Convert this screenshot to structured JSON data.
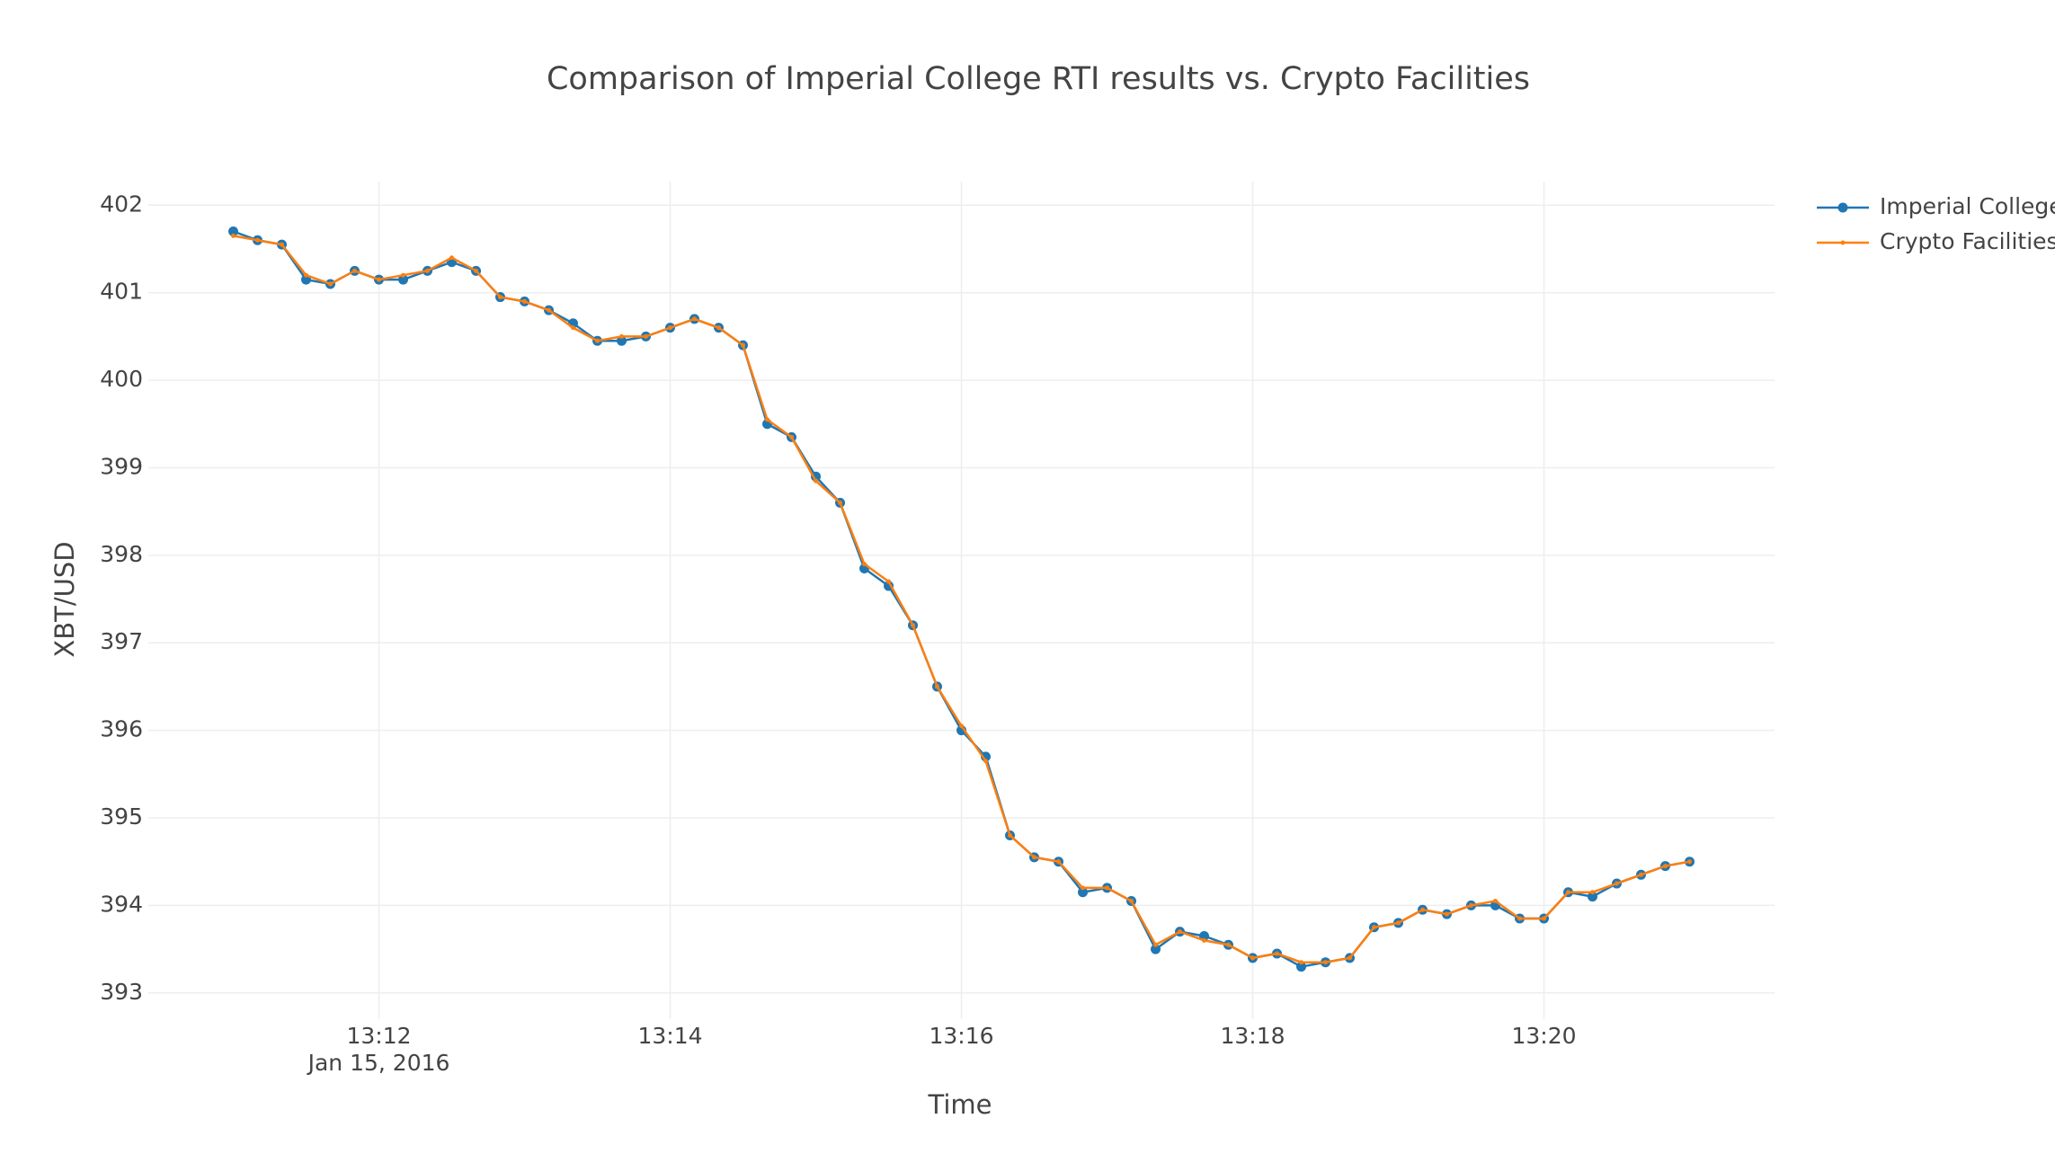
{
  "chart_data": {
    "type": "line",
    "title": "Comparison of Imperial College RTI results vs. Crypto Facilities",
    "x_label": "Time",
    "y_label": "XBT/USD",
    "x_date_label": "Jan 15, 2016",
    "x": [
      "2016-01-15 13:11:00",
      "2016-01-15 13:11:10",
      "2016-01-15 13:11:20",
      "2016-01-15 13:11:30",
      "2016-01-15 13:11:40",
      "2016-01-15 13:11:50",
      "2016-01-15 13:12:00",
      "2016-01-15 13:12:10",
      "2016-01-15 13:12:20",
      "2016-01-15 13:12:30",
      "2016-01-15 13:12:40",
      "2016-01-15 13:12:50",
      "2016-01-15 13:13:00",
      "2016-01-15 13:13:10",
      "2016-01-15 13:13:20",
      "2016-01-15 13:13:30",
      "2016-01-15 13:13:40",
      "2016-01-15 13:13:50",
      "2016-01-15 13:14:00",
      "2016-01-15 13:14:10",
      "2016-01-15 13:14:20",
      "2016-01-15 13:14:30",
      "2016-01-15 13:14:40",
      "2016-01-15 13:14:50",
      "2016-01-15 13:15:00",
      "2016-01-15 13:15:10",
      "2016-01-15 13:15:20",
      "2016-01-15 13:15:30",
      "2016-01-15 13:15:40",
      "2016-01-15 13:15:50",
      "2016-01-15 13:16:00",
      "2016-01-15 13:16:10",
      "2016-01-15 13:16:20",
      "2016-01-15 13:16:30",
      "2016-01-15 13:16:40",
      "2016-01-15 13:16:50",
      "2016-01-15 13:17:00",
      "2016-01-15 13:17:10",
      "2016-01-15 13:17:20",
      "2016-01-15 13:17:30",
      "2016-01-15 13:17:40",
      "2016-01-15 13:17:50",
      "2016-01-15 13:18:00",
      "2016-01-15 13:18:10",
      "2016-01-15 13:18:20",
      "2016-01-15 13:18:30",
      "2016-01-15 13:18:40",
      "2016-01-15 13:18:50",
      "2016-01-15 13:19:00",
      "2016-01-15 13:19:10",
      "2016-01-15 13:19:20",
      "2016-01-15 13:19:30",
      "2016-01-15 13:19:40",
      "2016-01-15 13:19:50",
      "2016-01-15 13:20:00",
      "2016-01-15 13:20:10",
      "2016-01-15 13:20:20",
      "2016-01-15 13:20:30",
      "2016-01-15 13:20:40",
      "2016-01-15 13:20:50",
      "2016-01-15 13:21:00"
    ],
    "series": [
      {
        "name": "Imperial College",
        "color": "#1f77b4",
        "marker": "dot",
        "values": [
          401.7,
          401.6,
          401.55,
          401.15,
          401.1,
          401.25,
          401.15,
          401.15,
          401.25,
          401.35,
          401.25,
          400.95,
          400.9,
          400.8,
          400.65,
          400.45,
          400.45,
          400.5,
          400.6,
          400.7,
          400.6,
          400.4,
          399.5,
          399.35,
          398.9,
          398.6,
          397.85,
          397.65,
          397.2,
          396.5,
          396.0,
          395.7,
          394.8,
          394.55,
          394.5,
          394.15,
          394.2,
          394.05,
          393.5,
          393.7,
          393.65,
          393.55,
          393.4,
          393.45,
          393.3,
          393.35,
          393.4,
          393.75,
          393.8,
          393.95,
          393.9,
          394.0,
          394.0,
          393.85,
          393.85,
          394.15,
          394.1,
          394.25,
          394.35,
          394.45,
          394.5
        ]
      },
      {
        "name": "Crypto Facilities",
        "color": "#ff7f0e",
        "marker": "small",
        "values": [
          401.65,
          401.6,
          401.55,
          401.2,
          401.1,
          401.25,
          401.15,
          401.2,
          401.25,
          401.4,
          401.25,
          400.95,
          400.9,
          400.8,
          400.6,
          400.45,
          400.5,
          400.5,
          400.6,
          400.7,
          400.6,
          400.4,
          399.55,
          399.35,
          398.85,
          398.6,
          397.9,
          397.7,
          397.2,
          396.5,
          396.05,
          395.65,
          394.8,
          394.55,
          394.5,
          394.2,
          394.2,
          394.05,
          393.55,
          393.7,
          393.6,
          393.55,
          393.4,
          393.45,
          393.35,
          393.35,
          393.4,
          393.75,
          393.8,
          393.95,
          393.9,
          394.0,
          394.05,
          393.85,
          393.85,
          394.15,
          394.15,
          394.25,
          394.35,
          394.45,
          394.5
        ]
      }
    ],
    "xlim": [
      "2016-01-15 13:10:25",
      "2016-01-15 13:21:35"
    ],
    "xticks": [
      {
        "value": "2016-01-15 13:12:00",
        "label": "13:12"
      },
      {
        "value": "2016-01-15 13:14:00",
        "label": "13:14"
      },
      {
        "value": "2016-01-15 13:16:00",
        "label": "13:16"
      },
      {
        "value": "2016-01-15 13:18:00",
        "label": "13:18"
      },
      {
        "value": "2016-01-15 13:20:00",
        "label": "13:20"
      }
    ],
    "ylim": [
      392.7,
      402.27
    ],
    "yticks": [
      393,
      394,
      395,
      396,
      397,
      398,
      399,
      400,
      401,
      402
    ],
    "grid": true,
    "legend": "right"
  }
}
